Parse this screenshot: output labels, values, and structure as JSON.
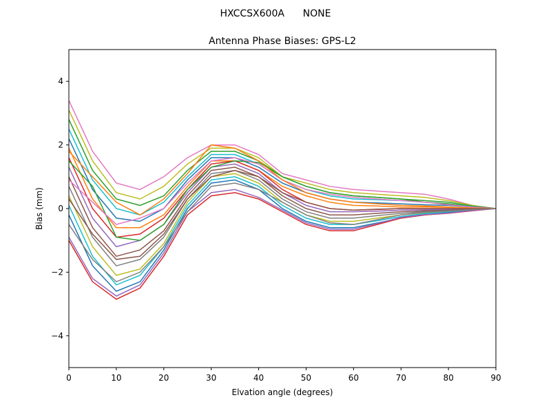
{
  "chart_data": {
    "type": "line",
    "suptitle": "HXCCSX600A      NONE",
    "title": "Antenna Phase Biases: GPS-L2",
    "xlabel": "Elvation angle (degrees)",
    "ylabel": "Bias (mm)",
    "xlim": [
      0,
      90
    ],
    "ylim": [
      -5,
      5
    ],
    "xticks": [
      0,
      10,
      20,
      30,
      40,
      50,
      60,
      70,
      80,
      90
    ],
    "yticks": [
      -4,
      -2,
      0,
      2,
      4
    ],
    "ytick_labels": [
      "−4",
      "−2",
      "0",
      "2",
      "4"
    ],
    "grid": false,
    "legend": "none",
    "x": [
      0,
      5,
      10,
      15,
      20,
      25,
      30,
      35,
      40,
      45,
      50,
      55,
      60,
      65,
      70,
      75,
      80,
      85,
      90
    ],
    "series": [
      {
        "color": "#e377c2",
        "values": [
          3.4,
          1.8,
          0.8,
          0.6,
          1.0,
          1.6,
          2.0,
          2.0,
          1.7,
          1.1,
          0.9,
          0.7,
          0.6,
          0.55,
          0.5,
          0.45,
          0.3,
          0.1,
          0.0
        ]
      },
      {
        "color": "#bcbd22",
        "values": [
          3.1,
          1.5,
          0.5,
          0.3,
          0.7,
          1.4,
          1.9,
          1.9,
          1.6,
          1.0,
          0.8,
          0.6,
          0.5,
          0.45,
          0.4,
          0.35,
          0.25,
          0.1,
          0.0
        ]
      },
      {
        "color": "#2ca02c",
        "values": [
          2.8,
          1.2,
          0.3,
          0.1,
          0.4,
          1.2,
          1.8,
          1.8,
          1.5,
          1.0,
          0.7,
          0.5,
          0.4,
          0.35,
          0.3,
          0.25,
          0.2,
          0.08,
          0.0
        ]
      },
      {
        "color": "#17becf",
        "values": [
          2.5,
          0.9,
          0.0,
          -0.2,
          0.2,
          1.0,
          1.7,
          1.7,
          1.4,
          0.9,
          0.6,
          0.4,
          0.3,
          0.28,
          0.25,
          0.2,
          0.15,
          0.06,
          0.0
        ]
      },
      {
        "color": "#1f77b4",
        "values": [
          2.2,
          0.6,
          -0.3,
          -0.4,
          0.0,
          0.9,
          1.6,
          1.6,
          1.3,
          0.8,
          0.5,
          0.3,
          0.2,
          0.18,
          0.15,
          0.12,
          0.1,
          0.05,
          0.0
        ]
      },
      {
        "color": "#ff7f0e",
        "values": [
          1.9,
          0.3,
          -0.6,
          -0.6,
          -0.2,
          0.7,
          1.5,
          1.5,
          1.2,
          0.7,
          0.4,
          0.2,
          0.1,
          0.08,
          0.05,
          0.05,
          0.04,
          0.02,
          0.0
        ]
      },
      {
        "color": "#d62728",
        "values": [
          1.6,
          0.0,
          -0.9,
          -0.8,
          -0.3,
          0.6,
          1.4,
          1.5,
          1.2,
          0.6,
          0.2,
          0.0,
          -0.05,
          -0.03,
          0.0,
          0.0,
          0.0,
          0.0,
          0.0
        ]
      },
      {
        "color": "#9467bd",
        "values": [
          1.3,
          -0.3,
          -1.2,
          -1.0,
          -0.5,
          0.5,
          1.3,
          1.4,
          1.1,
          0.5,
          0.1,
          -0.1,
          -0.1,
          -0.08,
          -0.05,
          -0.04,
          -0.03,
          -0.01,
          0.0
        ]
      },
      {
        "color": "#8c564b",
        "values": [
          1.0,
          -0.6,
          -1.5,
          -1.3,
          -0.7,
          0.4,
          1.2,
          1.3,
          1.0,
          0.4,
          0.0,
          -0.2,
          -0.2,
          -0.15,
          -0.1,
          -0.07,
          -0.05,
          -0.02,
          0.0
        ]
      },
      {
        "color": "#7f7f7f",
        "values": [
          0.7,
          -0.9,
          -1.8,
          -1.6,
          -0.9,
          0.3,
          1.1,
          1.2,
          0.9,
          0.3,
          -0.1,
          -0.3,
          -0.3,
          -0.22,
          -0.15,
          -0.1,
          -0.07,
          -0.03,
          0.0
        ]
      },
      {
        "color": "#bcbd22",
        "values": [
          0.4,
          -1.2,
          -2.1,
          -1.9,
          -1.1,
          0.2,
          1.0,
          1.1,
          0.8,
          0.2,
          -0.2,
          -0.4,
          -0.4,
          -0.3,
          -0.2,
          -0.13,
          -0.09,
          -0.04,
          0.0
        ]
      },
      {
        "color": "#17becf",
        "values": [
          0.1,
          -1.5,
          -2.4,
          -2.1,
          -1.2,
          0.1,
          0.9,
          1.0,
          0.7,
          0.1,
          -0.3,
          -0.5,
          -0.5,
          -0.38,
          -0.25,
          -0.16,
          -0.11,
          -0.05,
          0.0
        ]
      },
      {
        "color": "#1f77b4",
        "values": [
          -0.2,
          -1.8,
          -2.6,
          -2.3,
          -1.3,
          0.0,
          0.8,
          0.9,
          0.6,
          0.0,
          -0.4,
          -0.6,
          -0.6,
          -0.45,
          -0.3,
          -0.2,
          -0.13,
          -0.06,
          0.0
        ]
      },
      {
        "color": "#d62728",
        "values": [
          -1.0,
          -2.3,
          -2.85,
          -2.5,
          -1.5,
          -0.2,
          0.4,
          0.5,
          0.3,
          -0.1,
          -0.5,
          -0.7,
          -0.7,
          -0.5,
          -0.3,
          -0.2,
          -0.15,
          -0.07,
          0.0
        ]
      },
      {
        "color": "#9467bd",
        "values": [
          -0.9,
          -2.2,
          -2.75,
          -2.4,
          -1.4,
          -0.1,
          0.5,
          0.6,
          0.35,
          -0.05,
          -0.45,
          -0.65,
          -0.65,
          -0.47,
          -0.28,
          -0.19,
          -0.14,
          -0.06,
          0.0
        ]
      },
      {
        "color": "#2ca02c",
        "values": [
          1.5,
          0.7,
          -0.9,
          -1.0,
          -0.5,
          0.6,
          1.3,
          1.5,
          1.45,
          1.0,
          0.7,
          0.5,
          0.4,
          0.35,
          0.3,
          0.2,
          0.15,
          0.05,
          0.0
        ]
      },
      {
        "color": "#e377c2",
        "values": [
          0.9,
          0.2,
          -0.5,
          -0.3,
          0.0,
          0.8,
          1.5,
          1.6,
          1.4,
          0.9,
          0.6,
          0.45,
          0.35,
          0.3,
          0.25,
          0.2,
          0.12,
          0.05,
          0.0
        ]
      },
      {
        "color": "#ff7f0e",
        "values": [
          1.8,
          1.0,
          0.2,
          -0.2,
          0.3,
          1.1,
          2.0,
          1.9,
          1.5,
          0.9,
          0.5,
          0.3,
          0.2,
          0.15,
          0.1,
          0.08,
          0.05,
          0.02,
          0.0
        ]
      },
      {
        "color": "#8c564b",
        "values": [
          0.3,
          -0.8,
          -1.6,
          -1.5,
          -0.8,
          0.3,
          1.0,
          1.2,
          1.0,
          0.5,
          0.2,
          0.0,
          -0.05,
          -0.02,
          0.0,
          0.0,
          0.0,
          0.0,
          0.0
        ]
      },
      {
        "color": "#7f7f7f",
        "values": [
          -0.5,
          -1.6,
          -2.3,
          -2.0,
          -1.2,
          -0.1,
          0.7,
          0.8,
          0.6,
          0.2,
          -0.2,
          -0.45,
          -0.5,
          -0.35,
          -0.2,
          -0.12,
          -0.08,
          -0.03,
          0.0
        ]
      }
    ]
  }
}
